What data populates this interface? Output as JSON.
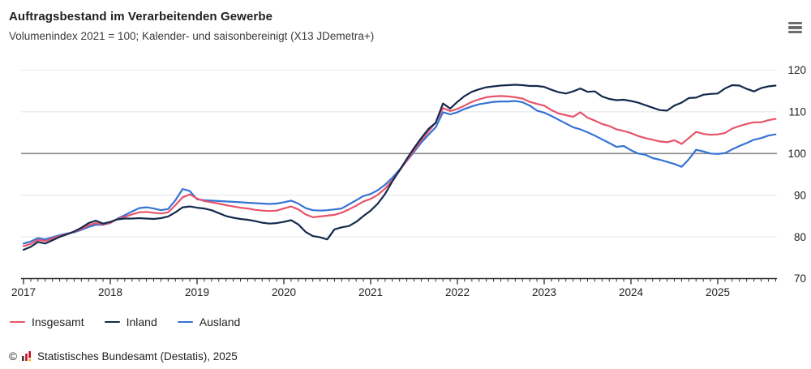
{
  "header": {
    "title": "Auftragsbestand im Verarbeitenden Gewerbe",
    "subtitle": "Volumenindex 2021 = 100; Kalender- und saisonbereinigt (X13 JDemetra+)"
  },
  "chart_data": {
    "type": "line",
    "frequency": "monthly",
    "x_start": "2017-01",
    "x_end": "2025-09",
    "x_tick_labels": [
      "2017",
      "2018",
      "2019",
      "2020",
      "2021",
      "2022",
      "2023",
      "2024",
      "2025"
    ],
    "ylim": [
      70,
      120
    ],
    "y_ticks": [
      70,
      80,
      90,
      100,
      110,
      120
    ],
    "reference_line": 100,
    "grid": true,
    "legend_position": "bottom",
    "colors": {
      "grid": "#e4e4e4",
      "reference": "#8a8a8a",
      "axis": "#2b2b2b",
      "tick_label": "#1f1f1f"
    },
    "series": [
      {
        "name": "Insgesamt",
        "color": "#e8546b",
        "values": [
          77.8,
          78.3,
          79.3,
          79.0,
          79.6,
          80.2,
          80.7,
          81.2,
          81.9,
          82.8,
          83.3,
          83.0,
          83.4,
          84.3,
          84.8,
          85.4,
          85.9,
          86.0,
          85.8,
          85.6,
          85.9,
          87.6,
          89.5,
          90.2,
          89.2,
          88.6,
          88.3,
          88.0,
          87.6,
          87.3,
          87.0,
          86.8,
          86.5,
          86.3,
          86.2,
          86.3,
          86.8,
          87.3,
          86.6,
          85.4,
          84.7,
          84.9,
          85.1,
          85.3,
          85.8,
          86.6,
          87.5,
          88.5,
          89.1,
          90.1,
          91.6,
          93.6,
          95.9,
          98.3,
          100.8,
          103.2,
          105.3,
          107.5,
          110.9,
          110.2,
          110.7,
          111.5,
          112.4,
          113.0,
          113.5,
          113.7,
          113.8,
          113.7,
          113.5,
          113.2,
          112.4,
          111.9,
          111.5,
          110.4,
          109.6,
          109.2,
          108.8,
          109.9,
          108.6,
          107.9,
          107.1,
          106.6,
          105.8,
          105.4,
          104.9,
          104.2,
          103.7,
          103.3,
          102.9,
          102.7,
          103.2,
          102.3,
          103.7,
          105.2,
          104.7,
          104.5,
          104.6,
          104.9,
          106.0,
          106.6,
          107.1,
          107.5,
          107.5,
          108.0,
          108.3
        ]
      },
      {
        "name": "Inland",
        "color": "#14294d",
        "values": [
          76.9,
          77.6,
          78.8,
          78.4,
          79.2,
          80.0,
          80.6,
          81.3,
          82.2,
          83.3,
          83.9,
          83.2,
          83.6,
          84.2,
          84.4,
          84.4,
          84.5,
          84.4,
          84.3,
          84.5,
          84.9,
          85.9,
          87.1,
          87.3,
          87.0,
          86.8,
          86.4,
          85.7,
          85.0,
          84.6,
          84.3,
          84.1,
          83.8,
          83.4,
          83.2,
          83.3,
          83.6,
          84.0,
          83.0,
          81.2,
          80.2,
          79.9,
          79.4,
          81.8,
          82.3,
          82.6,
          83.6,
          85.0,
          86.3,
          88.0,
          90.3,
          93.3,
          96.0,
          98.7,
          101.3,
          103.7,
          105.9,
          107.4,
          112.0,
          110.8,
          112.4,
          113.8,
          114.8,
          115.4,
          115.9,
          116.1,
          116.3,
          116.4,
          116.5,
          116.4,
          116.2,
          116.2,
          116.0,
          115.3,
          114.7,
          114.4,
          114.9,
          115.6,
          114.8,
          114.9,
          113.7,
          113.1,
          112.8,
          112.9,
          112.6,
          112.2,
          111.6,
          111.0,
          110.4,
          110.3,
          111.5,
          112.2,
          113.3,
          113.4,
          114.1,
          114.3,
          114.4,
          115.6,
          116.4,
          116.3,
          115.5,
          114.9,
          115.7,
          116.1,
          116.3
        ]
      },
      {
        "name": "Ausland",
        "color": "#3573d4",
        "values": [
          78.4,
          78.9,
          79.7,
          79.4,
          79.9,
          80.4,
          80.8,
          81.1,
          81.7,
          82.4,
          82.9,
          82.9,
          83.3,
          84.4,
          85.2,
          86.1,
          86.9,
          87.1,
          86.8,
          86.4,
          86.7,
          88.8,
          91.5,
          91.0,
          89.0,
          88.8,
          88.7,
          88.6,
          88.5,
          88.4,
          88.3,
          88.2,
          88.1,
          88.0,
          87.9,
          88.0,
          88.3,
          88.7,
          88.0,
          86.9,
          86.4,
          86.3,
          86.4,
          86.6,
          86.8,
          87.8,
          88.8,
          89.8,
          90.3,
          91.2,
          92.5,
          94.2,
          96.1,
          98.2,
          100.4,
          102.6,
          104.5,
          106.3,
          109.9,
          109.4,
          109.9,
          110.7,
          111.3,
          111.8,
          112.1,
          112.4,
          112.5,
          112.5,
          112.6,
          112.3,
          111.5,
          110.3,
          109.8,
          109.0,
          108.1,
          107.2,
          106.3,
          105.8,
          105.1,
          104.3,
          103.4,
          102.5,
          101.6,
          101.8,
          100.8,
          100.0,
          99.7,
          98.9,
          98.5,
          98.0,
          97.5,
          96.8,
          98.6,
          100.9,
          100.5,
          100.0,
          99.9,
          100.1,
          101.0,
          101.8,
          102.5,
          103.3,
          103.7,
          104.3,
          104.6
        ]
      }
    ]
  },
  "footer": {
    "copyright_symbol": "©",
    "source": "Statistisches Bundesamt (Destatis), 2025"
  }
}
